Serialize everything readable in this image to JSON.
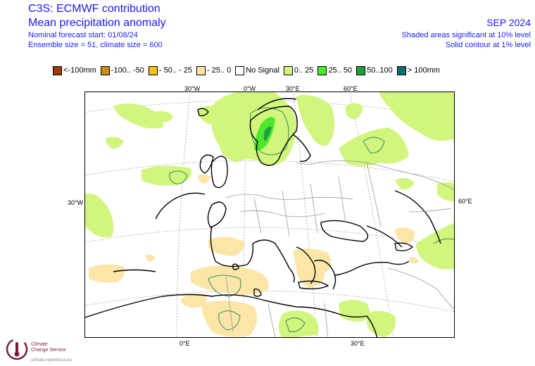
{
  "header": {
    "title": "C3S: ECMWF contribution",
    "subtitle": "Mean precipitation anomaly",
    "forecast_start": "Nominal forecast start: 01/08/24",
    "ensemble": "Ensemble size = 51, climate size = 600",
    "period": "SEP 2024",
    "note_shaded": "Shaded areas significant at 10% level",
    "note_contour": "Solid contour at 1% level"
  },
  "legend": [
    {
      "label": "<-100mm",
      "color": "#9a3a10"
    },
    {
      "label": "-100.. -50",
      "color": "#cc8a1a"
    },
    {
      "label": "- 50.. - 25",
      "color": "#f5c11e"
    },
    {
      "label": "- 25.. 0",
      "color": "#fbe6a8"
    },
    {
      "label": "No Signal",
      "color": "#ffffff"
    },
    {
      "label": "0.. 25",
      "color": "#d2f57e"
    },
    {
      "label": "25.. 50",
      "color": "#4ee82b"
    },
    {
      "label": "50..100",
      "color": "#20a03c"
    },
    {
      "label": "> 100mm",
      "color": "#0e6e6a"
    }
  ],
  "map": {
    "graticule_labels": {
      "top": [
        "30°W",
        "0°W",
        "30°E",
        "60°E"
      ],
      "left": "30°W",
      "right": "60°E",
      "bottom": [
        "0°E",
        "30°E"
      ]
    }
  },
  "logo": {
    "name_line1": "Climate",
    "name_line2": "Change Service",
    "url": "climate.copernicus.eu"
  },
  "colors": {
    "title": "#1a1aff",
    "positive_light": "#d2f57e",
    "positive_mid": "#4ee82b",
    "positive_strong": "#20a03c",
    "negative_light": "#fbe6a8",
    "contour": "#2e8b57"
  }
}
